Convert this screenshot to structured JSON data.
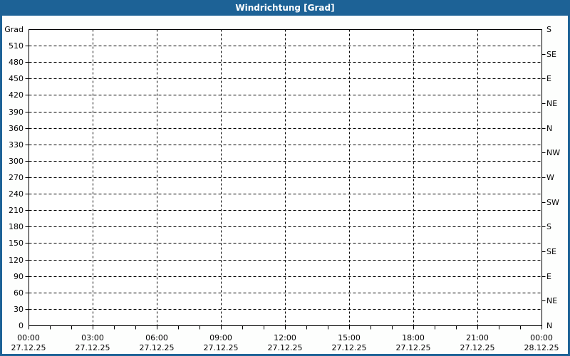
{
  "window": {
    "title": "Windrichtung [Grad]"
  },
  "colors": {
    "titlebar_bg": "#1d6296",
    "titlebar_text": "#ffffff",
    "frame_border": "#1d6296",
    "page_bg": "#fdfefd",
    "plot_bg": "#ffffff",
    "grid_line": "#000000",
    "axis_line": "#000000",
    "label_text": "#000000"
  },
  "chart_data": {
    "type": "line",
    "title": "Windrichtung [Grad]",
    "grid": {
      "style": "dashed",
      "horizontal_step_grad": 30,
      "vertical_step_hours": 3
    },
    "y_axis": {
      "unit_label": "Grad",
      "min": 0,
      "max": 540,
      "left_ticks": [
        0,
        30,
        60,
        90,
        120,
        150,
        180,
        210,
        240,
        270,
        300,
        330,
        360,
        390,
        420,
        450,
        480,
        510
      ],
      "right_ticks": [
        {
          "value": 540,
          "label": "S"
        },
        {
          "value": 495,
          "label": "SE"
        },
        {
          "value": 450,
          "label": "E"
        },
        {
          "value": 405,
          "label": "NE"
        },
        {
          "value": 360,
          "label": "N"
        },
        {
          "value": 315,
          "label": "NW"
        },
        {
          "value": 270,
          "label": "W"
        },
        {
          "value": 225,
          "label": "SW"
        },
        {
          "value": 180,
          "label": "S"
        },
        {
          "value": 135,
          "label": "SE"
        },
        {
          "value": 90,
          "label": "E"
        },
        {
          "value": 45,
          "label": "NE"
        },
        {
          "value": 0,
          "label": "N"
        }
      ]
    },
    "x_axis": {
      "min_hour": 0,
      "max_hour": 24,
      "major_step_hours": 3,
      "minor_step_hours": 1,
      "ticks": [
        {
          "hour": 0,
          "time": "00:00",
          "date": "27.12.25"
        },
        {
          "hour": 3,
          "time": "03:00",
          "date": "27.12.25"
        },
        {
          "hour": 6,
          "time": "06:00",
          "date": "27.12.25"
        },
        {
          "hour": 9,
          "time": "09:00",
          "date": "27.12.25"
        },
        {
          "hour": 12,
          "time": "12:00",
          "date": "27.12.25"
        },
        {
          "hour": 15,
          "time": "15:00",
          "date": "27.12.25"
        },
        {
          "hour": 18,
          "time": "18:00",
          "date": "27.12.25"
        },
        {
          "hour": 21,
          "time": "21:00",
          "date": "27.12.25"
        },
        {
          "hour": 24,
          "time": "00:00",
          "date": "28.12.25"
        }
      ]
    },
    "series": []
  }
}
